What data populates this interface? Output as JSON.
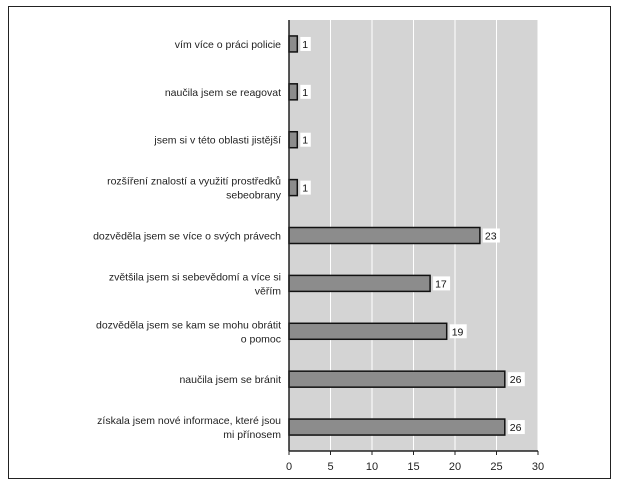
{
  "chart_data": {
    "type": "bar",
    "orientation": "horizontal",
    "categories": [
      "vím více o práci policie",
      "naučila jsem se reagovat",
      "jsem si v této oblasti jistější",
      "rozšíření znalostí a využití prostředků sebeobrany",
      "dozvěděla jsem se více o svých právech",
      "zvětšila jsem si sebevědomí a více si věřím",
      "dozvěděla jsem se kam se mohu obrátit o pomoc",
      "naučila jsem se bránit",
      "získala jsem nové informace, které jsou mi přínosem"
    ],
    "category_lines": [
      [
        "vím více o práci policie"
      ],
      [
        "naučila jsem se reagovat"
      ],
      [
        "jsem si v této oblasti jistější"
      ],
      [
        "rozšíření znalostí a využití prostředků",
        "sebeobrany"
      ],
      [
        "dozvěděla jsem se více o svých právech"
      ],
      [
        "zvětšila jsem si sebevědomí a více si",
        "věřím"
      ],
      [
        "dozvěděla jsem se kam se mohu obrátit",
        "o pomoc"
      ],
      [
        "naučila jsem se bránit"
      ],
      [
        "získala jsem nové informace, které jsou",
        "mi přínosem"
      ]
    ],
    "values": [
      1,
      1,
      1,
      1,
      23,
      17,
      19,
      26,
      26
    ],
    "data_labels": [
      "1",
      "1",
      "1",
      "1",
      "23",
      "17",
      "19",
      "26",
      "26"
    ],
    "xlim": [
      0,
      30
    ],
    "x_ticks": [
      0,
      5,
      10,
      15,
      20,
      25,
      30
    ],
    "x_tick_labels": [
      "0",
      "5",
      "10",
      "15",
      "20",
      "25",
      "30"
    ],
    "grid": "vertical",
    "legend": "none",
    "title": "",
    "xlabel": "",
    "ylabel": "",
    "colors": {
      "plot_background": "#d4d4d4",
      "bar_fill": "#8c8c8c",
      "bar_stroke": "#111111",
      "grid": "#ffffff",
      "frame": "#222222"
    }
  }
}
